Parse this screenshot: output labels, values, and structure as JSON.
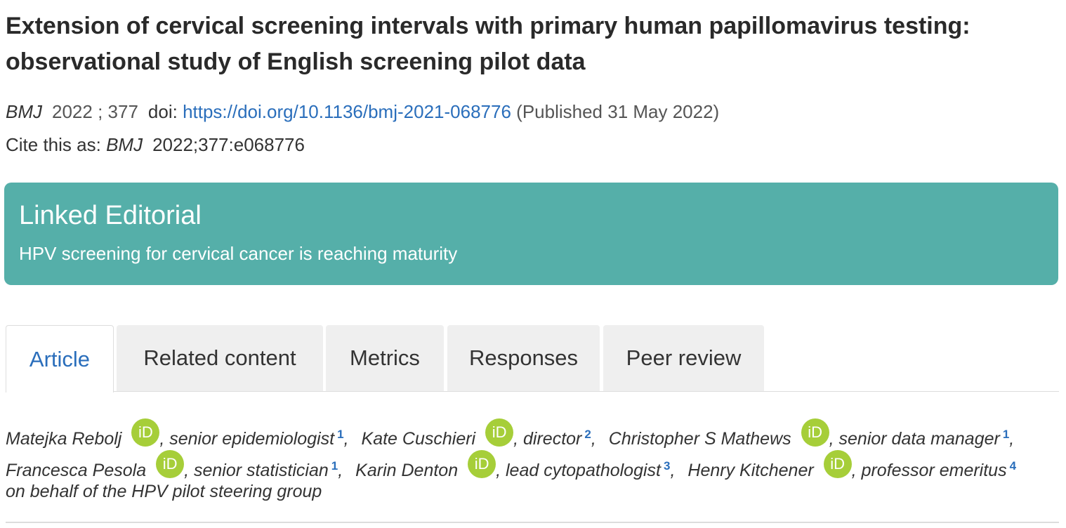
{
  "header": {
    "title": "Extension of cervical screening intervals with primary human papillomavirus testing: observational study of English screening pilot data"
  },
  "citation": {
    "journal": "BMJ",
    "year": "2022",
    "volume": "; 377",
    "doi_label": "doi:",
    "doi_link": "https://doi.org/10.1136/bmj-2021-068776",
    "published": "(Published 31 May 2022)",
    "cite_label": "Cite this as:",
    "cite_journal": "BMJ",
    "cite_ref": "2022;377:e068776"
  },
  "linked_editorial": {
    "heading": "Linked Editorial",
    "link": "HPV screening for cervical cancer is reaching maturity"
  },
  "tabs": [
    "Article",
    "Related content",
    "Metrics",
    "Responses",
    "Peer review"
  ],
  "orcid_icon": "iD",
  "authors": [
    {
      "name": "Matejka Rebolj",
      "role": ", senior epidemiologist",
      "sup": "1",
      "separator": ","
    },
    {
      "name": "Kate Cuschieri",
      "role": ", director",
      "sup": "2",
      "separator": ","
    },
    {
      "name": "Christopher S Mathews",
      "role": ", senior data manager",
      "sup": "1",
      "separator": ","
    },
    {
      "name": "Francesca Pesola",
      "role": ", senior statistician",
      "sup": "1",
      "separator": ","
    },
    {
      "name": "Karin Denton",
      "role": ", lead cytopathologist",
      "sup": "3",
      "separator": ","
    },
    {
      "name": "Henry Kitchener",
      "role": ", professor emeritus",
      "sup": "4"
    }
  ],
  "on_behalf": "on behalf of the HPV pilot steering group"
}
